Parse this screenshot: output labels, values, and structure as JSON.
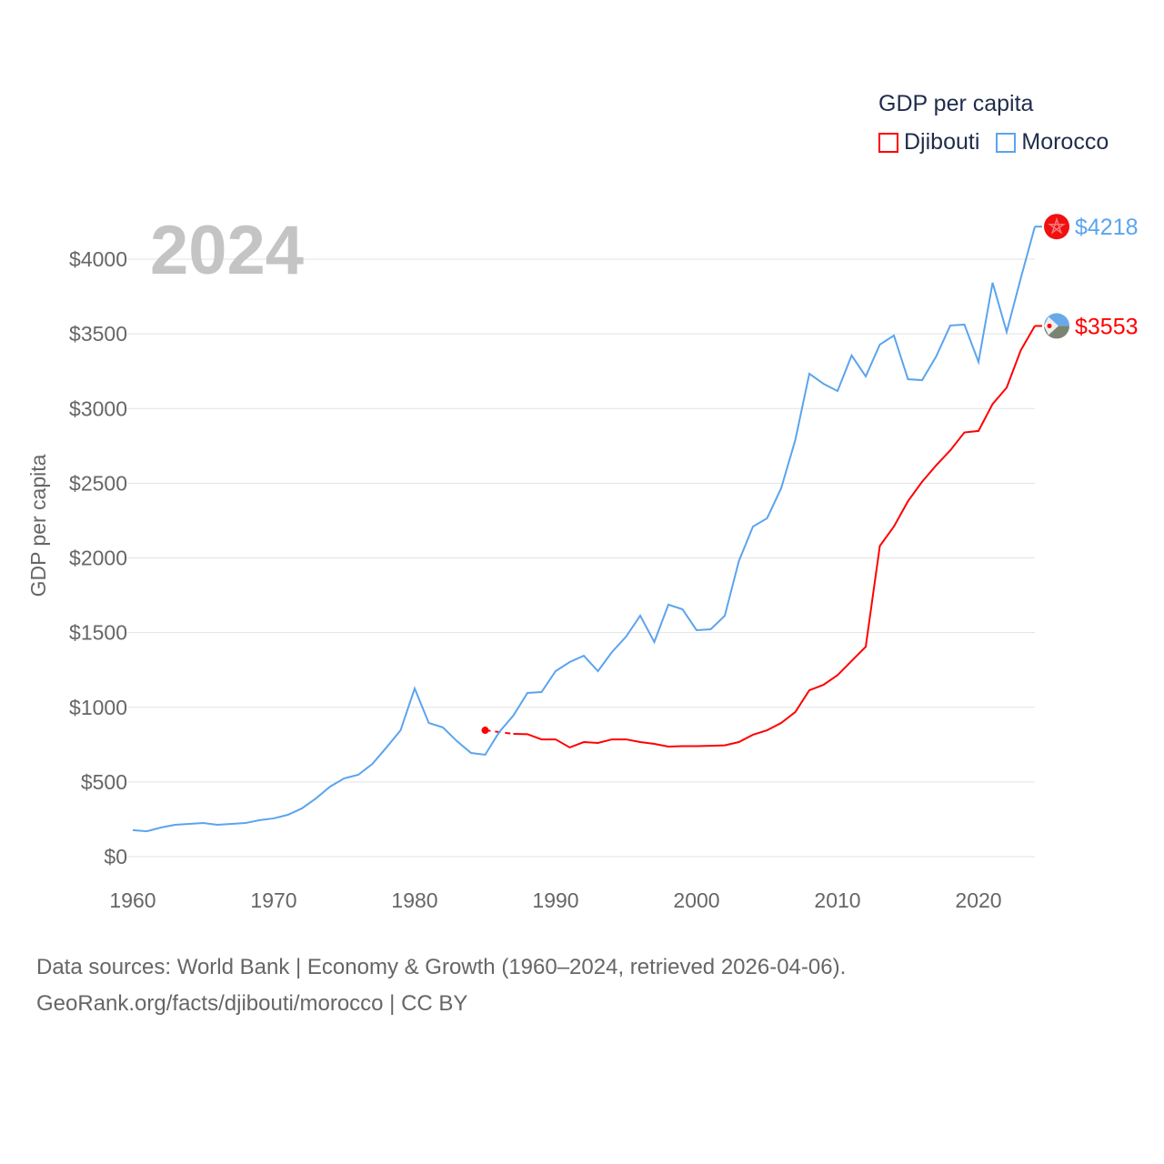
{
  "chart_data": {
    "type": "line",
    "title": "GDP per capita",
    "ylabel": "GDP per capita",
    "xlabel": "",
    "year_watermark": "2024",
    "xlim": [
      1960,
      2024
    ],
    "ylim": [
      0,
      4300
    ],
    "x_ticks": [
      "1960",
      "1970",
      "1980",
      "1990",
      "2000",
      "2010",
      "2020"
    ],
    "y_ticks": [
      "$0",
      "$500",
      "$1000",
      "$1500",
      "$2000",
      "$2500",
      "$3000",
      "$3500",
      "$4000"
    ],
    "grid": true,
    "legend_placement": "top-right",
    "series": [
      {
        "name": "Djibouti",
        "color": "#ff0000",
        "end_label": "$3553",
        "start_year": 1985,
        "values": [
          846,
          834,
          822,
          820,
          785,
          785,
          731,
          767,
          761,
          785,
          785,
          767,
          755,
          737,
          740,
          740,
          742,
          745,
          767,
          816,
          846,
          895,
          968,
          1114,
          1150,
          1215,
          1310,
          1405,
          2080,
          2210,
          2380,
          2510,
          2620,
          2720,
          2840,
          2850,
          3030,
          3140,
          3390,
          3553
        ]
      },
      {
        "name": "Morocco",
        "color": "#5ba4ee",
        "end_label": "$4218",
        "start_year": 1960,
        "values": [
          177,
          170,
          195,
          213,
          219,
          225,
          213,
          219,
          225,
          244,
          256,
          280,
          323,
          390,
          469,
          524,
          548,
          621,
          731,
          846,
          1126,
          895,
          865,
          773,
          694,
          682,
          834,
          944,
          1096,
          1102,
          1242,
          1303,
          1345,
          1242,
          1370,
          1473,
          1613,
          1437,
          1687,
          1656,
          1516,
          1522,
          1613,
          1979,
          2210,
          2265,
          2466,
          2788,
          3233,
          3166,
          3117,
          3355,
          3215,
          3428,
          3489,
          3196,
          3190,
          3349,
          3556,
          3562,
          3312,
          3842,
          3513,
          3872,
          4218
        ]
      }
    ]
  },
  "footer": {
    "line1": "Data sources: World Bank | Economy & Growth (1960–2024, retrieved 2026-04-06).",
    "line2": "GeoRank.org/facts/djibouti/morocco | CC BY"
  }
}
